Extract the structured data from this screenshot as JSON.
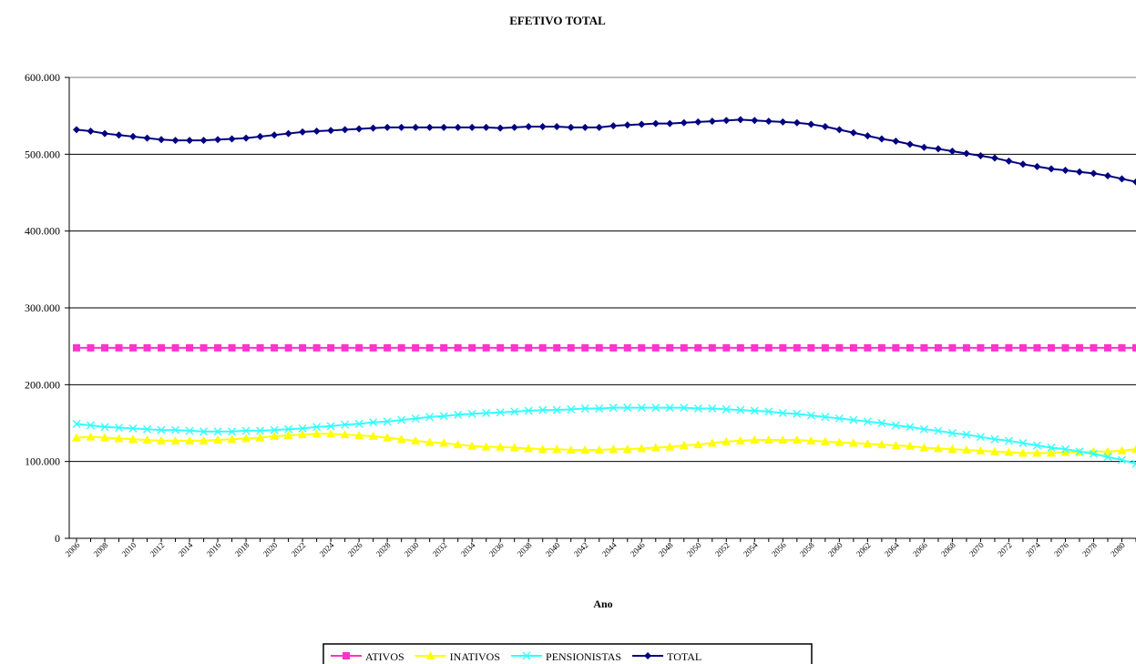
{
  "chart_data": {
    "type": "line",
    "title": "EFETIVO TOTAL",
    "xlabel": "Ano",
    "ylabel": "",
    "ylim": [
      0,
      600000
    ],
    "yticks": [
      0,
      100000,
      200000,
      300000,
      400000,
      500000,
      600000
    ],
    "ytick_labels": [
      "0",
      "100.000",
      "200.000",
      "300.000",
      "400.000",
      "500.000",
      "600.000"
    ],
    "grid": "horizontal",
    "legend_position": "bottom",
    "x": [
      2006,
      2007,
      2008,
      2009,
      2010,
      2011,
      2012,
      2013,
      2014,
      2015,
      2016,
      2017,
      2018,
      2019,
      2020,
      2021,
      2022,
      2023,
      2024,
      2025,
      2026,
      2027,
      2028,
      2029,
      2030,
      2031,
      2032,
      2033,
      2034,
      2035,
      2036,
      2037,
      2038,
      2039,
      2040,
      2041,
      2042,
      2043,
      2044,
      2045,
      2046,
      2047,
      2048,
      2049,
      2050,
      2051,
      2052,
      2053,
      2054,
      2055,
      2056,
      2057,
      2058,
      2059,
      2060,
      2061,
      2062,
      2063,
      2064,
      2065,
      2066,
      2067,
      2068,
      2069,
      2070,
      2071,
      2072,
      2073,
      2074,
      2075,
      2076,
      2077,
      2078,
      2079,
      2080,
      2081
    ],
    "xtick_labels": [
      "2006",
      "2008",
      "2010",
      "2012",
      "2014",
      "2016",
      "2018",
      "2020",
      "2022",
      "2024",
      "2026",
      "2028",
      "2030",
      "2032",
      "2034",
      "2036",
      "2038",
      "2040",
      "2042",
      "2044",
      "2046",
      "2048",
      "2050",
      "2052",
      "2054",
      "2056",
      "2058",
      "2060",
      "2062",
      "2064",
      "2066",
      "2068",
      "2070",
      "2072",
      "2074",
      "2076",
      "2078",
      "2080"
    ],
    "series": [
      {
        "name": "ATIVOS",
        "color": "#ff33cc",
        "marker": "square",
        "values": [
          248000,
          248000,
          248000,
          248000,
          248000,
          248000,
          248000,
          248000,
          248000,
          248000,
          248000,
          248000,
          248000,
          248000,
          248000,
          248000,
          248000,
          248000,
          248000,
          248000,
          248000,
          248000,
          248000,
          248000,
          248000,
          248000,
          248000,
          248000,
          248000,
          248000,
          248000,
          248000,
          248000,
          248000,
          248000,
          248000,
          248000,
          248000,
          248000,
          248000,
          248000,
          248000,
          248000,
          248000,
          248000,
          248000,
          248000,
          248000,
          248000,
          248000,
          248000,
          248000,
          248000,
          248000,
          248000,
          248000,
          248000,
          248000,
          248000,
          248000,
          248000,
          248000,
          248000,
          248000,
          248000,
          248000,
          248000,
          248000,
          248000,
          248000,
          248000,
          248000,
          248000,
          248000,
          248000,
          248000
        ]
      },
      {
        "name": "INATIVOS",
        "color": "#ffff00",
        "marker": "triangle",
        "values": [
          131000,
          132000,
          131000,
          130000,
          129000,
          128000,
          127000,
          127000,
          127000,
          127000,
          128000,
          129000,
          130000,
          131000,
          133000,
          134000,
          135000,
          136000,
          136000,
          135000,
          134000,
          133000,
          131000,
          129000,
          127000,
          125000,
          124000,
          122000,
          120000,
          119000,
          119000,
          118000,
          117000,
          116000,
          116000,
          115000,
          115000,
          115000,
          116000,
          116000,
          117000,
          118000,
          119000,
          121000,
          122000,
          124000,
          126000,
          127000,
          128000,
          128000,
          128000,
          128000,
          127000,
          126000,
          125000,
          124000,
          123000,
          122000,
          121000,
          120000,
          118000,
          117000,
          116000,
          115000,
          114000,
          113000,
          112000,
          111000,
          111000,
          111000,
          112000,
          112000,
          113000,
          113000,
          114000,
          116000
        ]
      },
      {
        "name": "PENSIONISTAS",
        "color": "#33ffff",
        "marker": "x",
        "values": [
          149000,
          147000,
          145000,
          144000,
          143000,
          142000,
          141000,
          141000,
          140000,
          139000,
          139000,
          139000,
          140000,
          140000,
          141000,
          142000,
          143000,
          145000,
          146000,
          148000,
          149000,
          151000,
          152000,
          154000,
          156000,
          158000,
          159000,
          161000,
          162000,
          163000,
          164000,
          165000,
          166000,
          167000,
          167000,
          168000,
          169000,
          169000,
          170000,
          170000,
          170000,
          170000,
          170000,
          170000,
          169000,
          169000,
          168000,
          167000,
          166000,
          165000,
          163000,
          162000,
          160000,
          158000,
          156000,
          154000,
          152000,
          150000,
          147000,
          145000,
          142000,
          140000,
          137000,
          135000,
          132000,
          129000,
          127000,
          124000,
          121000,
          118000,
          116000,
          113000,
          110000,
          106000,
          102000,
          97000
        ]
      },
      {
        "name": "TOTAL",
        "color": "#000080",
        "marker": "diamond",
        "values": [
          532000,
          530000,
          527000,
          525000,
          523000,
          521000,
          519000,
          518000,
          518000,
          518000,
          519000,
          520000,
          521000,
          523000,
          525000,
          527000,
          529000,
          530000,
          531000,
          532000,
          533000,
          534000,
          535000,
          535000,
          535000,
          535000,
          535000,
          535000,
          535000,
          535000,
          534000,
          535000,
          536000,
          536000,
          536000,
          535000,
          535000,
          535000,
          537000,
          538000,
          539000,
          540000,
          540000,
          541000,
          542000,
          543000,
          544000,
          545000,
          544000,
          543000,
          542000,
          541000,
          539000,
          536000,
          532000,
          528000,
          524000,
          520000,
          517000,
          513000,
          509000,
          507000,
          504000,
          501000,
          498000,
          495000,
          491000,
          487000,
          484000,
          481000,
          479000,
          477000,
          475000,
          472000,
          468000,
          464000
        ]
      }
    ]
  }
}
